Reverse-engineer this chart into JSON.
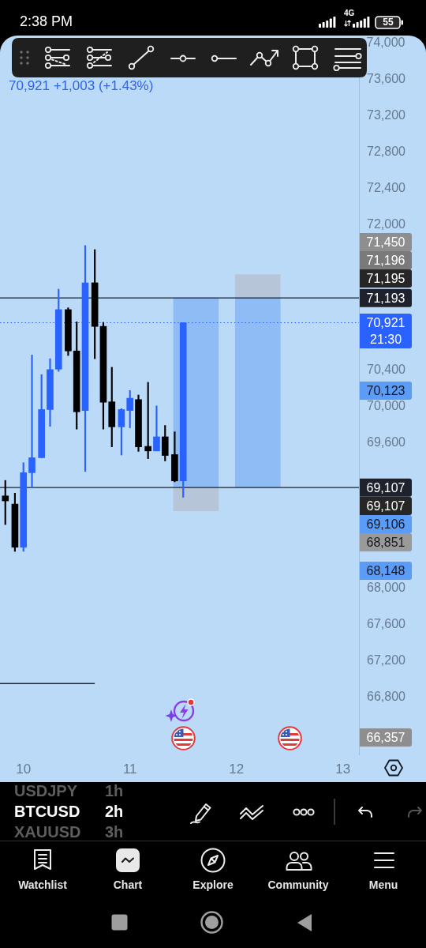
{
  "chart_data": {
    "type": "candlestick",
    "title": "BTCUSD",
    "subtitle": "70,921 +1,003 (+1.43%)",
    "xlim": [
      9.78,
      13.15
    ],
    "xticks": [
      10,
      11,
      12,
      13
    ],
    "ylim": [
      66170,
      73620
    ],
    "yticks": [
      {
        "value": 66800,
        "label": "66,800"
      },
      {
        "value": 67200,
        "label": "67,200"
      },
      {
        "value": 67600,
        "label": "67,600"
      },
      {
        "value": 68000,
        "label": "68,000"
      },
      {
        "value": 69600,
        "label": "69,600"
      },
      {
        "value": 70000,
        "label": "70,000"
      },
      {
        "value": 70400,
        "label": "70,400"
      },
      {
        "value": 72000,
        "label": "72,000"
      },
      {
        "value": 72400,
        "label": "72,400"
      },
      {
        "value": 72800,
        "label": "72,800"
      },
      {
        "value": 73200,
        "label": "73,200"
      },
      {
        "value": 73600,
        "label": "73,600"
      }
    ],
    "series": [
      {
        "type": "bar",
        "x": [
          11.62,
          12.2
        ],
        "base": [
          69107,
          69107
        ],
        "values": [
          2086,
          2086
        ],
        "color": "#8fbcf5"
      },
      {
        "type": "bar",
        "x": [
          11.62,
          12.2
        ],
        "base": [
          68851,
          71193
        ],
        "values": [
          256,
          257
        ],
        "color": "#b6c6d8"
      },
      {
        "type": "line",
        "x": [
          9.78,
          10.67
        ],
        "values": [
          66950,
          66950
        ],
        "color": "#1e222d"
      },
      {
        "x": [
          9.83,
          9.92,
          10,
          10.08,
          10.17,
          10.25,
          10.33,
          10.42,
          10.5,
          10.58,
          10.67,
          10.75,
          10.83,
          10.92,
          11,
          11.08,
          11.17,
          11.25,
          11.33,
          11.42,
          11.5
        ],
        "ohlc": [
          [
            69015,
            69185,
            68700,
            68960
          ],
          [
            68925,
            69045,
            68405,
            68450
          ],
          [
            68450,
            69380,
            68405,
            69270
          ],
          [
            69270,
            70565,
            69105,
            69435
          ],
          [
            69435,
            70350,
            69435,
            69965
          ],
          [
            69965,
            70525,
            69780,
            70405
          ],
          [
            70410,
            71290,
            70385,
            71065
          ],
          [
            71065,
            71085,
            70560,
            70610
          ],
          [
            70610,
            70930,
            69750,
            69940
          ],
          [
            69955,
            71770,
            69285,
            71360
          ],
          [
            71360,
            71725,
            70525,
            70880
          ],
          [
            70880,
            70925,
            69750,
            70045
          ],
          [
            70050,
            70430,
            69555,
            69775
          ],
          [
            69775,
            69975,
            69465,
            69965
          ],
          [
            69955,
            70175,
            69765,
            70090
          ],
          [
            70075,
            70125,
            69505,
            69555
          ],
          [
            69560,
            70265,
            69425,
            69510
          ],
          [
            69510,
            70005,
            69510,
            69665
          ],
          [
            69665,
            69790,
            69400,
            69460
          ],
          [
            69470,
            69720,
            69170,
            69180
          ],
          [
            69180,
            70921,
            69000,
            70921
          ]
        ],
        "colors": [
          "#000000",
          "#000000",
          "#2962ff",
          "#2962ff",
          "#2962ff",
          "#2962ff",
          "#2962ff",
          "#000000",
          "#000000",
          "#2962ff",
          "#000000",
          "#000000",
          "#000000",
          "#2962ff",
          "#2962ff",
          "#000000",
          "#000000",
          "#2962ff",
          "#000000",
          "#000000",
          "#2962ff"
        ]
      }
    ],
    "ref_lines": [
      {
        "axis": "y",
        "value": 71193,
        "label": "71,193",
        "color": "#1e222d"
      },
      {
        "axis": "y",
        "value": 70921,
        "label": "70,921\n21:30",
        "color": "#2962ff",
        "line_style": "dotted"
      },
      {
        "axis": "y",
        "value": 69107,
        "label": "69,107",
        "color": "#1e222d"
      }
    ],
    "annotations": [
      "2:38 PM",
      "4G",
      "55",
      "USDJPY",
      "1h",
      "2h",
      "XAUUSD",
      "3h",
      "Watchlist",
      "Chart",
      "Explore",
      "Community",
      "Menu",
      "71,450",
      "71,196",
      "71,195",
      "70,123",
      "69,107",
      "69,106",
      "68,851",
      "68,148",
      "66,357",
      "74,000"
    ]
  }
}
